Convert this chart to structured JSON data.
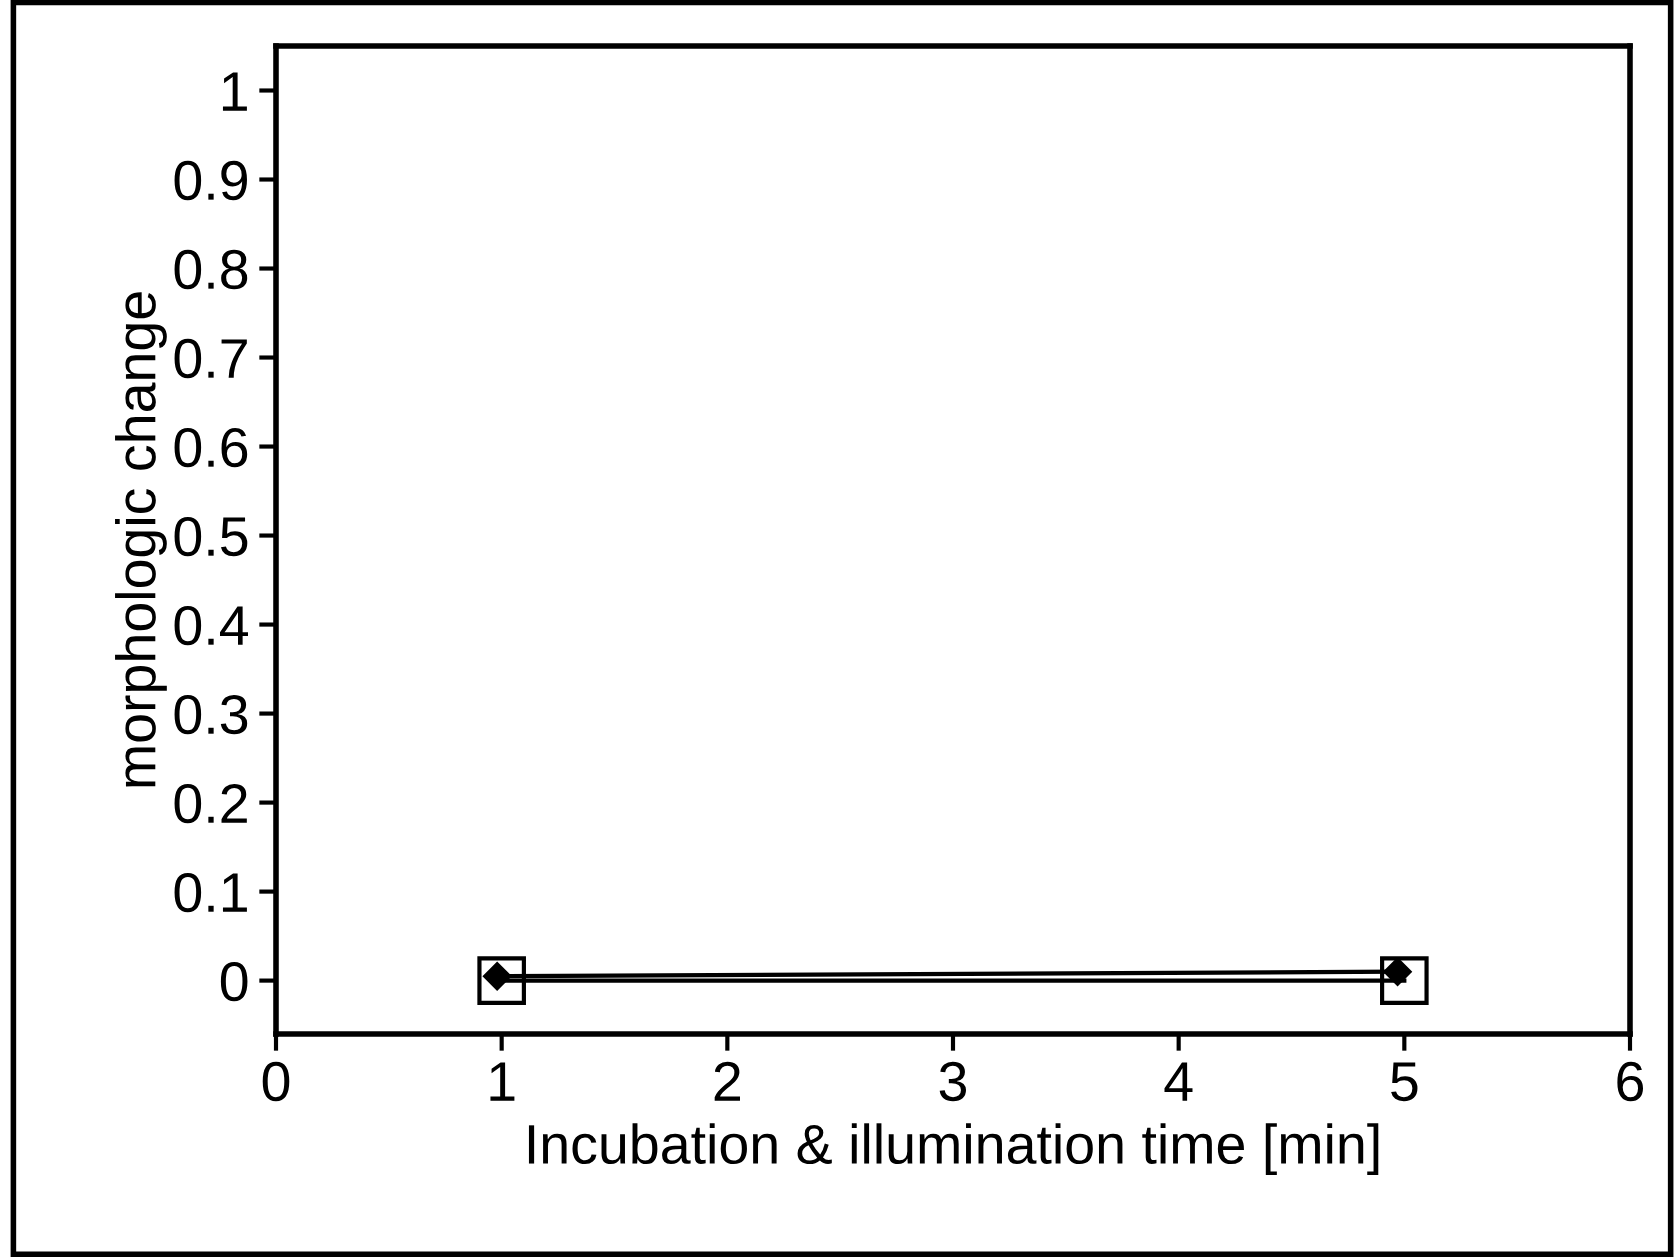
{
  "chart_data": {
    "type": "line",
    "xlabel": "Incubation & illumination time [min]",
    "ylabel": "morphologic change",
    "xlim": [
      0,
      6
    ],
    "xticks": [
      0,
      1,
      2,
      3,
      4,
      5,
      6
    ],
    "ylim": [
      -0.06,
      1.05
    ],
    "yticks": [
      0,
      0.1,
      0.2,
      0.3,
      0.4,
      0.5,
      0.6,
      0.7,
      0.8,
      0.9,
      1
    ],
    "grid": false,
    "line_style": "solid",
    "series": [
      {
        "color": "#000000",
        "x": [
          1,
          5
        ],
        "values": [
          0,
          0
        ],
        "marker": "square"
      },
      {
        "color": "#000000",
        "x": [
          0.98,
          4.97
        ],
        "values": [
          0.005,
          0.01
        ],
        "marker": "diamond"
      }
    ]
  }
}
